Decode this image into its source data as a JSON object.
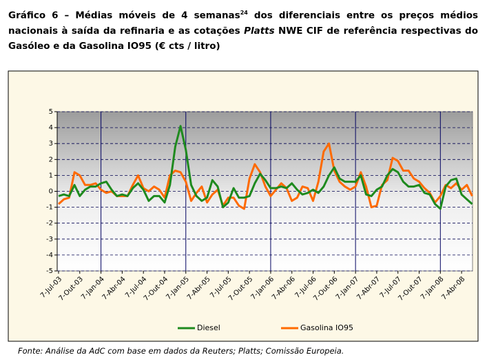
{
  "heading": {
    "before": "Gráfico 6 – Médias móveis de 4 semanas",
    "footnote_ref": "24",
    "middle": " dos diferenciais entre os preços médios nacionais à saída da refinaria e as cotações ",
    "emphasis": "Platts",
    "after": " NWE CIF de referência respectivas do Gasóleo e da Gasolina IO95 (€ cts / litro)"
  },
  "chart_data": {
    "type": "line",
    "categories": [
      "7-Jul-03",
      null,
      null,
      null,
      "7-Out-03",
      null,
      null,
      null,
      "7-Jan-04",
      null,
      null,
      null,
      "7-Abr-04",
      null,
      null,
      null,
      "7-Jul-04",
      null,
      null,
      null,
      "7-Out-04",
      null,
      null,
      null,
      "7-Jan-05",
      null,
      null,
      null,
      "7-Abr-05",
      null,
      null,
      null,
      "7-Jul-05",
      null,
      null,
      null,
      "7-Out-05",
      null,
      null,
      null,
      "7-Jan-06",
      null,
      null,
      null,
      "7-Abr-06",
      null,
      null,
      null,
      "7-Jul-06",
      null,
      null,
      null,
      "7-Out-06",
      null,
      null,
      null,
      "7-Jan-07",
      null,
      null,
      null,
      "7-Abr-07",
      null,
      null,
      null,
      "7-Jul-07",
      null,
      null,
      null,
      "7-Out-07",
      null,
      null,
      null,
      "7-Jan-08",
      null,
      null,
      null,
      "7-Abr-08",
      null,
      null
    ],
    "series": [
      {
        "name": "Diesel",
        "color": "#1e8a1e",
        "values": [
          -0.3,
          -0.2,
          -0.3,
          0.4,
          -0.3,
          0.1,
          0.3,
          0.3,
          0.5,
          0.6,
          0.1,
          -0.3,
          -0.2,
          -0.3,
          0.2,
          0.5,
          0.1,
          -0.6,
          -0.3,
          -0.3,
          -0.7,
          0.4,
          2.8,
          4.1,
          2.6,
          0.4,
          -0.3,
          -0.6,
          -0.4,
          0.7,
          0.3,
          -1.0,
          -0.7,
          0.2,
          -0.4,
          -0.4,
          -0.3,
          0.5,
          1.1,
          0.7,
          0.2,
          0.2,
          0.3,
          0.2,
          0.5,
          0.1,
          -0.2,
          -0.1,
          0.1,
          -0.1,
          0.3,
          1.0,
          1.5,
          0.8,
          0.6,
          0.6,
          0.6,
          1.0,
          -0.2,
          -0.3,
          0.1,
          0.3,
          1.0,
          1.4,
          1.2,
          0.6,
          0.3,
          0.3,
          0.4,
          -0.1,
          -0.2,
          -0.8,
          -1.1,
          0.3,
          0.7,
          0.8,
          -0.2,
          -0.5,
          -0.8
        ]
      },
      {
        "name": "Gasolina IO95",
        "color": "#ff6a00",
        "values": [
          -0.8,
          -0.5,
          -0.4,
          1.2,
          1.0,
          0.4,
          0.4,
          0.5,
          0.1,
          -0.1,
          0.0,
          -0.3,
          -0.3,
          -0.3,
          0.4,
          1.0,
          0.2,
          0.0,
          0.3,
          0.1,
          -0.4,
          1.0,
          1.3,
          1.2,
          0.6,
          -0.6,
          -0.1,
          0.3,
          -0.7,
          -0.2,
          0.1,
          -0.9,
          -0.4,
          -0.4,
          -0.9,
          -1.1,
          0.8,
          1.7,
          1.2,
          0.3,
          -0.3,
          0.1,
          0.5,
          0.2,
          -0.6,
          -0.4,
          0.3,
          0.2,
          -0.6,
          0.6,
          2.5,
          3.0,
          1.3,
          0.6,
          0.3,
          0.1,
          0.3,
          1.2,
          0.3,
          -1.0,
          -0.9,
          0.4,
          0.7,
          2.1,
          1.9,
          1.3,
          1.3,
          0.8,
          0.6,
          0.2,
          -0.1,
          -0.7,
          -0.3,
          0.4,
          0.2,
          0.5,
          0.1,
          0.4,
          -0.3
        ]
      }
    ],
    "ylim": [
      -5,
      5
    ],
    "yticks": [
      -5,
      -4,
      -3,
      -2,
      -1,
      0,
      1,
      2,
      3,
      4,
      5
    ],
    "grid": true
  },
  "source": "Fonte: Análise da AdC com base em dados da Reuters; Platts; Comissão Europeia."
}
